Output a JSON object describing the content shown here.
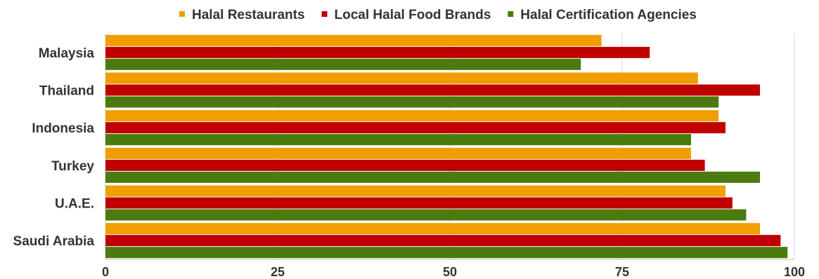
{
  "chart_data": {
    "type": "bar",
    "orientation": "horizontal",
    "categories": [
      "Malaysia",
      "Thailand",
      "Indonesia",
      "Turkey",
      "U.A.E.",
      "Saudi Arabia"
    ],
    "series": [
      {
        "name": "Halal Restaurants",
        "color": "#f29d00",
        "values": [
          72,
          86,
          89,
          85,
          90,
          95
        ]
      },
      {
        "name": "Local Halal Food Brands",
        "color": "#c00000",
        "values": [
          79,
          95,
          90,
          87,
          91,
          98
        ]
      },
      {
        "name": "Halal Certification Agencies",
        "color": "#4b7a0e",
        "values": [
          69,
          89,
          85,
          95,
          93,
          99
        ]
      }
    ],
    "xlim": [
      0,
      100
    ],
    "xticks": [
      0,
      25,
      50,
      75,
      100
    ],
    "legend_position": "top",
    "grid": true
  }
}
